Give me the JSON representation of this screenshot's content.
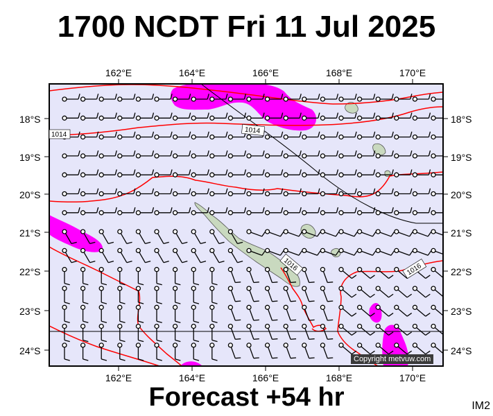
{
  "title": "1700 NCDT Fri 11 Jul 2025",
  "footer": "Forecast +54 hr",
  "corner_label": "IM2",
  "copyright": "Copyright metvuw.com",
  "lon_labels": [
    "162°E",
    "164°E",
    "166°E",
    "168°E",
    "170°E"
  ],
  "lat_labels": [
    "18°S",
    "19°S",
    "20°S",
    "21°S",
    "22°S",
    "23°S",
    "24°S"
  ],
  "isobar_labels": [
    "1014",
    "1014",
    "1016",
    "1016"
  ],
  "colors": {
    "ocean": "#e6e6fa",
    "isobar": "#ff0000",
    "rain": "#ff00ff",
    "land": "#c9d9bf",
    "wind_barb": "#000000"
  }
}
